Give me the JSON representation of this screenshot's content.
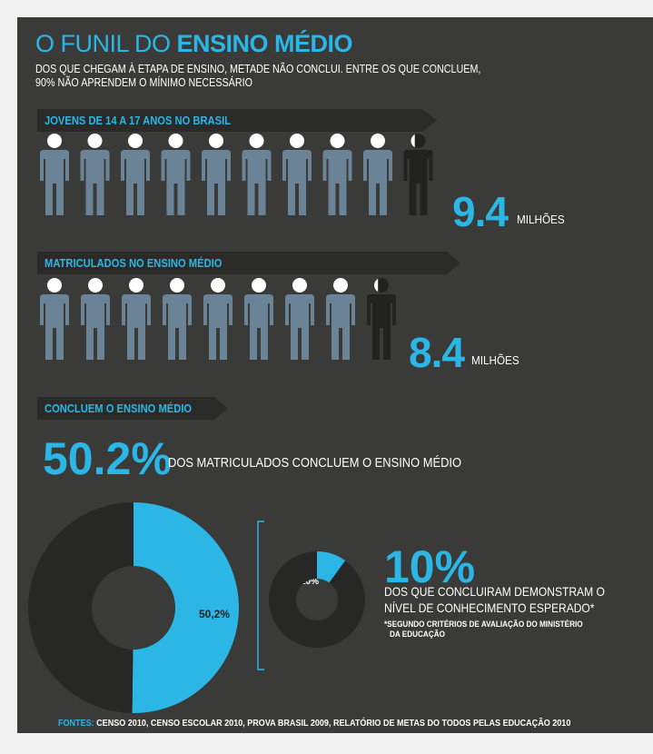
{
  "header": {
    "title_light": "O FUNIL DO ",
    "title_bold": "ENSINO MÉDIO",
    "subtitle_line1": "DOS QUE CHEGAM À ETAPA DE ENSINO, METADE NÃO CONCLUI. ENTRE OS QUE CONCLUEM,",
    "subtitle_line2": "90% NÃO APRENDEM O MÍNIMO NECESSÁRIO"
  },
  "sections": {
    "youth_label": "JOVENS DE 14 A 17 ANOS NO BRASIL",
    "enrolled_label": "MATRICULADOS NO ENSINO MÉDIO",
    "complete_label": "CONCLUEM O ENSINO MÉDIO"
  },
  "stats": {
    "youth_value": "9.4",
    "youth_unit": "MILHÕES",
    "enrolled_value": "8.4",
    "enrolled_unit": "MILHÕES",
    "completion_value": "50.2%",
    "completion_desc": "DOS MATRICULADOS CONCLUEM O ENSINO MÉDIO",
    "knowledge_value": "10%",
    "knowledge_desc_line1": "DOS QUE CONCLUIRAM DEMONSTRAM O",
    "knowledge_desc_line2": "NÍVEL DE CONHECIMENTO ESPERADO*",
    "note_line1": "*SEGUNDO CRITÉRIOS DE AVALIAÇÃO DO MINISTÉRIO",
    "note_line2": "DA EDUCAÇÃO"
  },
  "footer": {
    "sources_label": "FONTES:",
    "sources_text": " CENSO 2010, CENSO ESCOLAR 2010, PROVA BRASIL 2009, RELATÓRIO DE METAS DO TODOS PELAS EDUCAÇÃO 2010"
  },
  "colors": {
    "accent": "#2bb6e6",
    "background": "#3a3a39",
    "figure": "#6a8396",
    "figure_dark": "#222221",
    "head": "#ffffff",
    "donut_dark": "#272726"
  },
  "chart_data": [
    {
      "type": "pictogram",
      "label": "JOVENS DE 14 A 17 ANOS NO BRASIL",
      "value": 9.4,
      "unit": "MILHÕES",
      "full_figures": 9,
      "partial_fraction": 0.4
    },
    {
      "type": "pictogram",
      "label": "MATRICULADOS NO ENSINO MÉDIO",
      "value": 8.4,
      "unit": "MILHÕES",
      "full_figures": 8,
      "partial_fraction": 0.4
    },
    {
      "type": "pie",
      "slices": [
        {
          "label": "50,2%",
          "value": 50.2,
          "highlight": true
        },
        {
          "label": "",
          "value": 49.8,
          "highlight": false
        }
      ]
    },
    {
      "type": "pie",
      "slices": [
        {
          "label": "10%",
          "value": 10,
          "highlight": true
        },
        {
          "label": "",
          "value": 90,
          "highlight": false
        }
      ]
    }
  ]
}
